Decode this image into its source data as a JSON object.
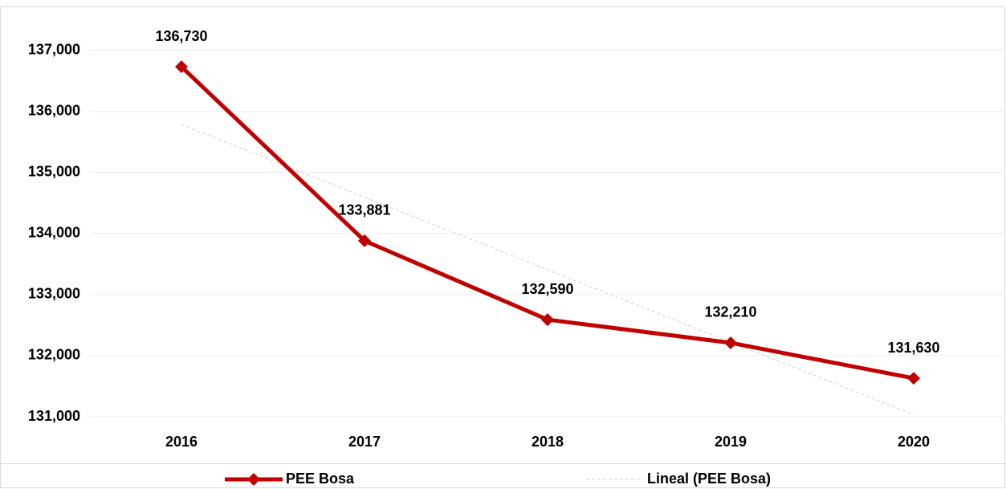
{
  "chart_data": {
    "type": "line",
    "categories": [
      "2016",
      "2017",
      "2018",
      "2019",
      "2020"
    ],
    "series": [
      {
        "name": "PEE Bosa",
        "color": "#c00000",
        "values": [
          136730,
          133881,
          132590,
          132210,
          131630
        ],
        "value_labels": [
          "136,730",
          "133,881",
          "132,590",
          "132,210",
          "131,630"
        ],
        "marker": "diamond"
      },
      {
        "name": "Lineal (PEE Bosa)",
        "color": "#d0d0d0",
        "values": [
          135782,
          134595,
          133408,
          132221,
          131034
        ],
        "dashed": true
      }
    ],
    "ylim": [
      131000,
      137600
    ],
    "yticks": [
      {
        "value": 131000,
        "label": "131,000"
      },
      {
        "value": 132000,
        "label": "132,000"
      },
      {
        "value": 133000,
        "label": "133,000"
      },
      {
        "value": 134000,
        "label": "134,000"
      },
      {
        "value": 135000,
        "label": "135,000"
      },
      {
        "value": 136000,
        "label": "136,000"
      },
      {
        "value": 137000,
        "label": "137,000"
      }
    ],
    "grid": true
  }
}
